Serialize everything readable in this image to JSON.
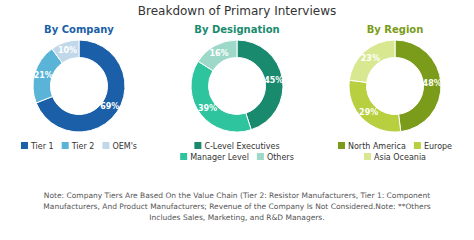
{
  "title": "Breakdown of Primary Interviews",
  "annotations": [
    "Note: Company Tiers Are Based On the Value Chain (Tier 2: Resistor Manufacturers, Tier 1: Component\nManufacturers, And Product Manufacturers; Revenue of the Company Is Not Considered.Note: **Others\nIncludes Sales, Marketing, and R&D Managers."
  ],
  "chart_data": [
    {
      "type": "donut",
      "title": "By Company",
      "categories": [
        "Tier 1",
        "Tier 2",
        "OEM's"
      ],
      "values": [
        69,
        21,
        10
      ],
      "value_labels": [
        "69%",
        "21%",
        "10%"
      ],
      "colors": [
        "#1a5fa8",
        "#5ab4d8",
        "#c0d8ea"
      ],
      "data_labels": true,
      "legend": "bottom"
    },
    {
      "type": "donut",
      "title": "By Designation",
      "categories": [
        "C-Level Executives",
        "Manager Level",
        "Others"
      ],
      "values": [
        45,
        39,
        16
      ],
      "value_labels": [
        "45%",
        "39%",
        "16%"
      ],
      "colors": [
        "#1a8a6e",
        "#2dc49e",
        "#9ed8c8"
      ],
      "data_labels": true,
      "legend": "bottom"
    },
    {
      "type": "donut",
      "title": "By Region",
      "categories": [
        "North America",
        "Europe",
        "Asia Oceania"
      ],
      "values": [
        48,
        29,
        23
      ],
      "value_labels": [
        "48%",
        "29%",
        "23%"
      ],
      "colors": [
        "#7a9c1a",
        "#b8d040",
        "#d8e890"
      ],
      "data_labels": true,
      "legend": "bottom"
    }
  ]
}
